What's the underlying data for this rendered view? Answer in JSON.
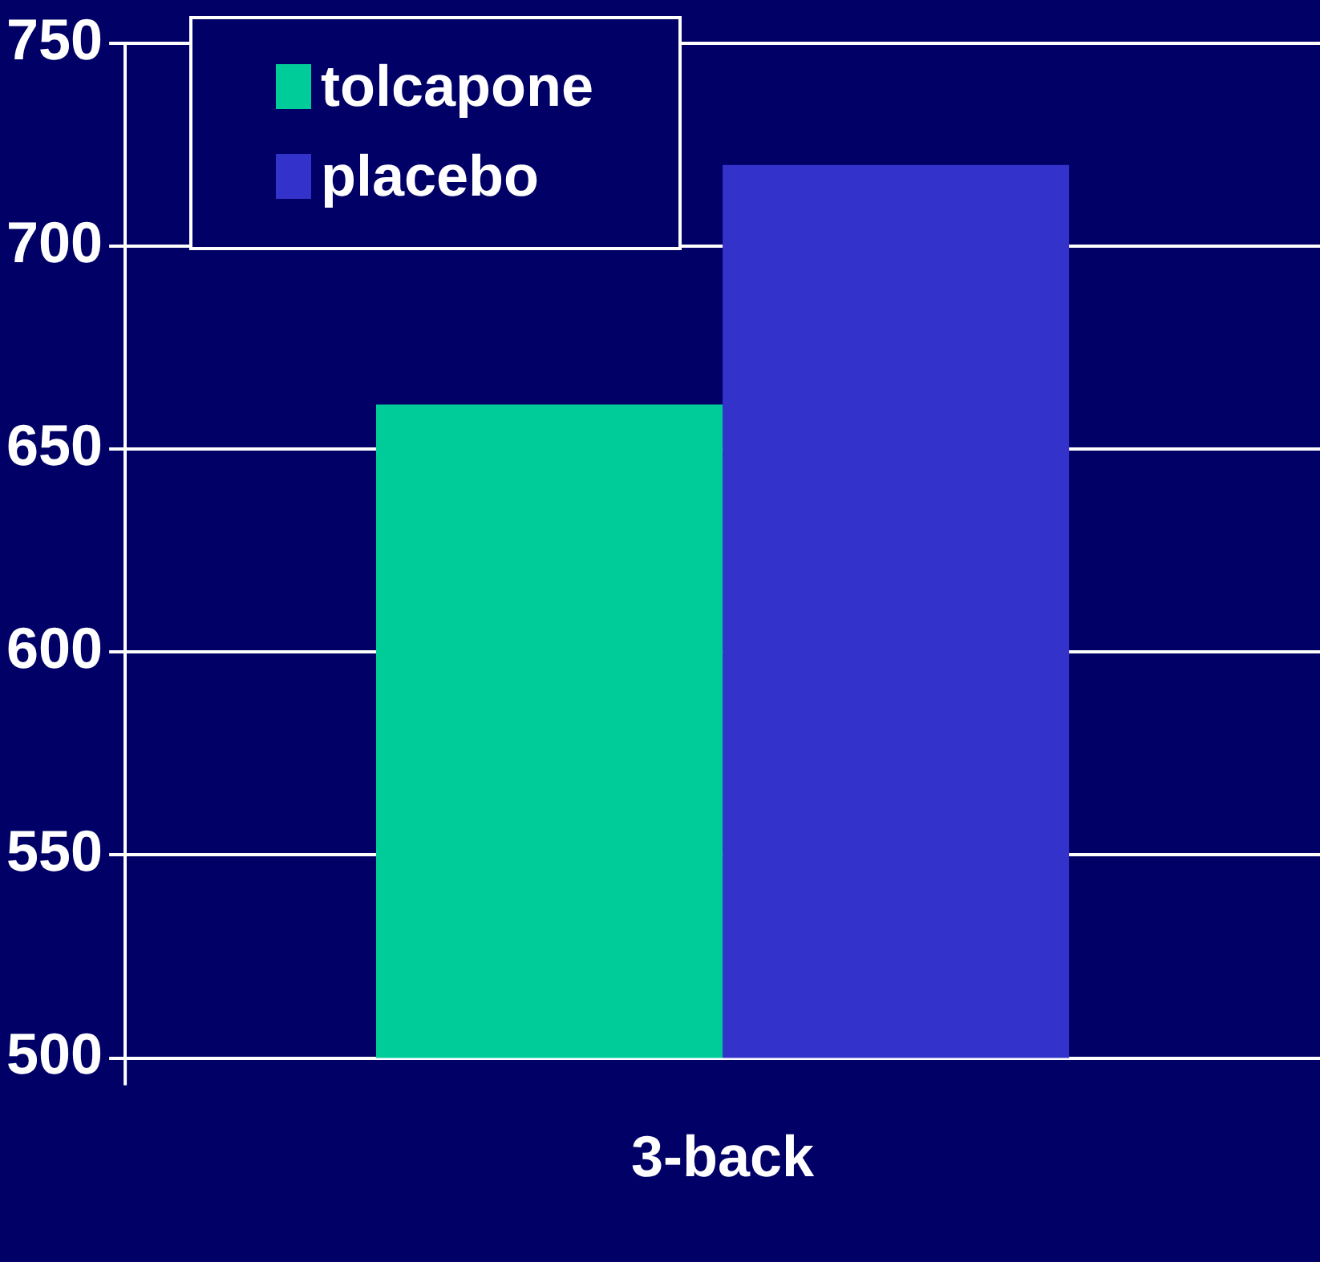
{
  "chart_data": {
    "type": "bar",
    "categories": [
      "3-back"
    ],
    "series": [
      {
        "name": "tolcapone",
        "color": "#00cc99",
        "values": [
          661
        ]
      },
      {
        "name": "placebo",
        "color": "#3333cc",
        "values": [
          720
        ]
      }
    ],
    "ylim": [
      500,
      750
    ],
    "yticks": [
      500,
      550,
      600,
      650,
      700,
      750
    ],
    "grid": "y",
    "legend": "top left"
  }
}
